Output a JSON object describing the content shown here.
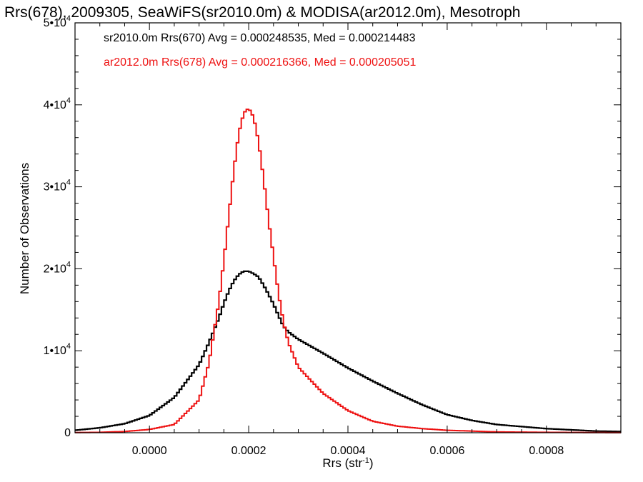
{
  "chart_data": {
    "type": "line",
    "title": "Rrs(678), 2009305, SeaWiFS(sr2010.0m) & MODISA(ar2012.0m), Mesotroph",
    "xlabel": "Rrs (str",
    "xlabel_sup": "-1",
    "xlabel_end": ")",
    "ylabel": "Number of Observations",
    "xlim": [
      -0.00015,
      0.00095
    ],
    "ylim": [
      0,
      50000
    ],
    "grid": false,
    "x_ticks": [
      {
        "value": 0.0,
        "label": "0.0000"
      },
      {
        "value": 0.0002,
        "label": "0.0002"
      },
      {
        "value": 0.0004,
        "label": "0.0004"
      },
      {
        "value": 0.0006,
        "label": "0.0006"
      },
      {
        "value": 0.0008,
        "label": "0.0008"
      }
    ],
    "y_ticks": [
      {
        "value": 0,
        "mant": "0",
        "exp": ""
      },
      {
        "value": 10000,
        "mant": "1•10",
        "exp": "4"
      },
      {
        "value": 20000,
        "mant": "2•10",
        "exp": "4"
      },
      {
        "value": 30000,
        "mant": "3•10",
        "exp": "4"
      },
      {
        "value": 40000,
        "mant": "4•10",
        "exp": "4"
      },
      {
        "value": 50000,
        "mant": "5•10",
        "exp": "4"
      }
    ],
    "annotations": [
      {
        "text": "sr2010.0m Rrs(670) Avg = 0.000248535, Med = 0.000214483",
        "color": "#000000"
      },
      {
        "text": "ar2012.0m Rrs(678) Avg = 0.000216366, Med = 0.000205051",
        "color": "#ee1111"
      }
    ],
    "series": [
      {
        "color": "#000000",
        "x": [
          -0.00015,
          -0.0001,
          -5e-05,
          0.0,
          5e-05,
          0.0001,
          0.00012,
          0.00014,
          0.00015,
          0.00016,
          0.00017,
          0.00018,
          0.00019,
          0.0002,
          0.00021,
          0.00022,
          0.00023,
          0.00024,
          0.00025,
          0.00026,
          0.00027,
          0.00028,
          0.0003,
          0.00035,
          0.0004,
          0.00045,
          0.0005,
          0.00055,
          0.0006,
          0.00065,
          0.0007,
          0.0008,
          0.0009,
          0.00095
        ],
        "y": [
          300,
          600,
          1100,
          2100,
          4300,
          8300,
          11000,
          14000,
          15800,
          17300,
          18500,
          19300,
          19700,
          19700,
          19400,
          19000,
          18000,
          16900,
          15700,
          14300,
          13000,
          12300,
          11400,
          9700,
          7900,
          6300,
          4800,
          3400,
          2200,
          1500,
          1000,
          500,
          200,
          150
        ]
      },
      {
        "color": "#ee1111",
        "x": [
          -0.00015,
          -0.0001,
          -5e-05,
          0.0,
          5e-05,
          0.0001,
          0.00012,
          0.00014,
          0.00015,
          0.00016,
          0.00017,
          0.00018,
          0.00019,
          0.0002,
          0.00021,
          0.00022,
          0.00023,
          0.00024,
          0.00025,
          0.00026,
          0.00027,
          0.00028,
          0.0003,
          0.00035,
          0.0004,
          0.00045,
          0.0005,
          0.00055,
          0.0006,
          0.00065,
          0.0007,
          0.0008,
          0.0009,
          0.00095
        ],
        "y": [
          20,
          50,
          150,
          400,
          1000,
          4000,
          8500,
          16000,
          21000,
          26500,
          32000,
          36500,
          39000,
          39600,
          38500,
          35500,
          31000,
          26000,
          21500,
          17000,
          13500,
          11000,
          8000,
          4800,
          2700,
          1400,
          800,
          500,
          300,
          200,
          100,
          50,
          20,
          10
        ]
      }
    ]
  }
}
